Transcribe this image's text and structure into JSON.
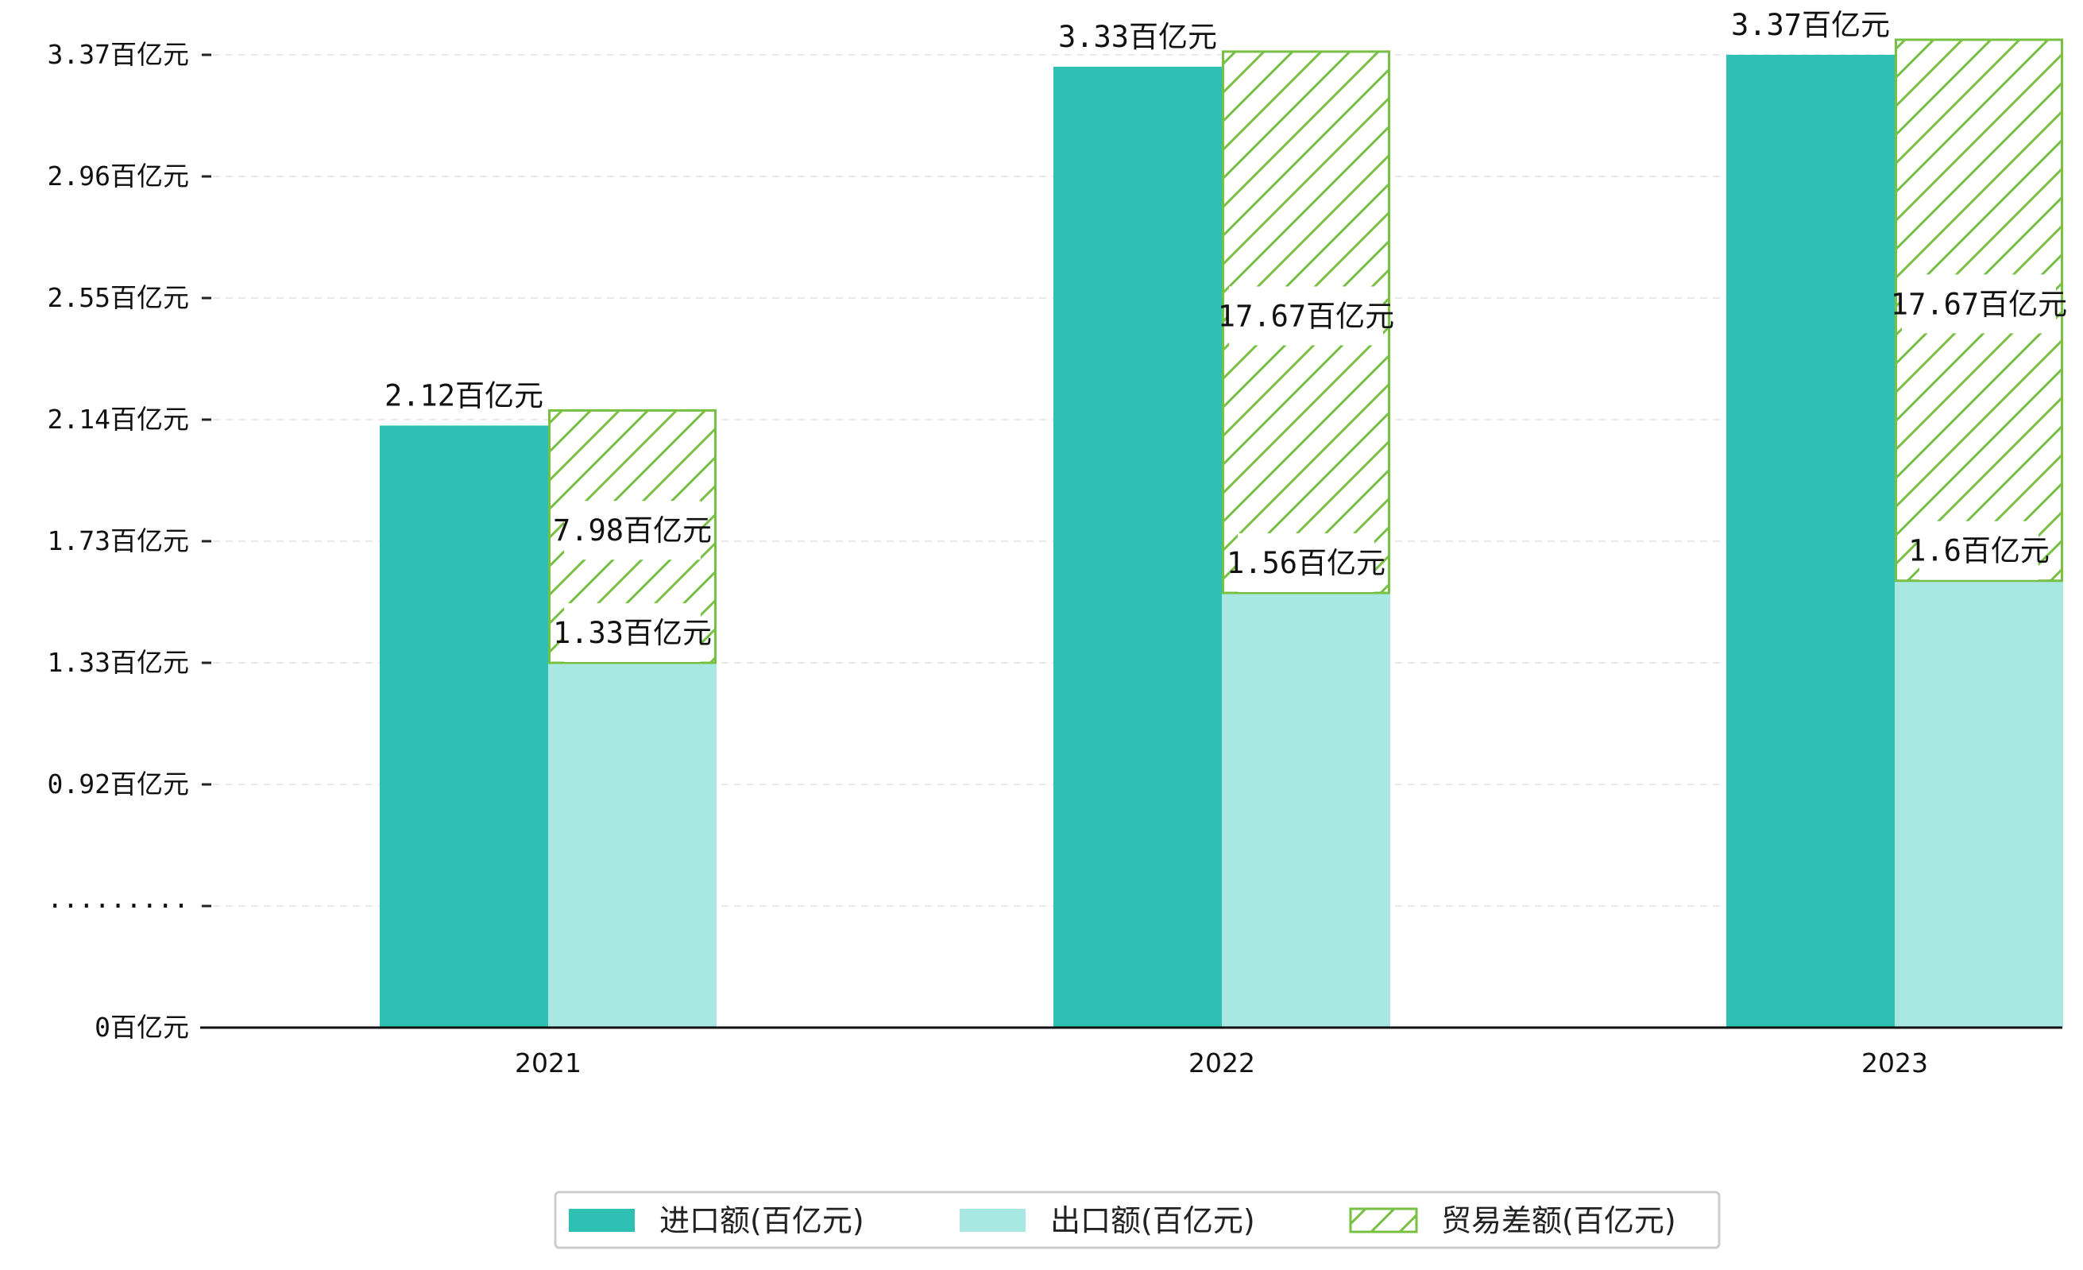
{
  "chart_data": {
    "type": "bar",
    "categories": [
      "2021",
      "2022",
      "2023"
    ],
    "series": [
      {
        "name": "进口额(百亿元)",
        "values": [
          2.12,
          3.33,
          3.37
        ],
        "labels": [
          "2.12百亿元",
          "3.33百亿元",
          "3.37百亿元"
        ]
      },
      {
        "name": "出口额(百亿元)",
        "values": [
          1.33,
          1.56,
          1.6
        ],
        "labels": [
          "1.33百亿元",
          "1.56百亿元",
          "1.6百亿元"
        ]
      },
      {
        "name": "贸易差额(百亿元)",
        "values": [
          7.98,
          17.67,
          17.67
        ],
        "labels": [
          "7.98百亿元",
          "17.67百亿元",
          "17.67百亿元"
        ],
        "note": "stacked on top of 出口额"
      }
    ],
    "y_tick_labels": [
      "0百亿元",
      "·········",
      "0.92百亿元",
      "1.33百亿元",
      "1.73百亿元",
      "2.14百亿元",
      "2.55百亿元",
      "2.96百亿元",
      "3.37百亿元"
    ],
    "ylim": [
      0,
      3.37
    ],
    "y_axis_break": true,
    "grid": true,
    "legend_position": "bottom-center",
    "colors": {
      "import": "#2ec0b2",
      "export": "#a8e7e2",
      "balance_hatch": "#77c043"
    },
    "title": "",
    "xlabel": "",
    "ylabel": ""
  }
}
